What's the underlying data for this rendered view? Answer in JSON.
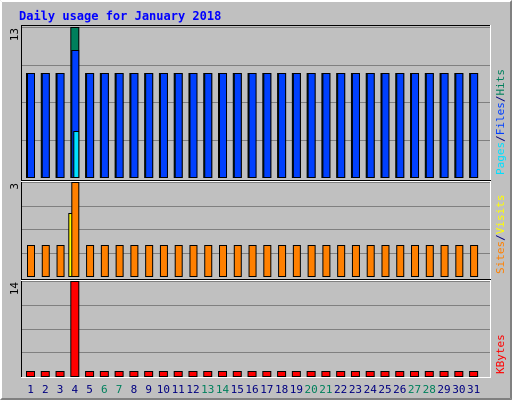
{
  "title": "Daily usage for January 2018",
  "colors": {
    "hits": "#00805c",
    "files": "#0040ff",
    "pages": "#00e0ff",
    "visits": "#ffff00",
    "sites": "#ff8000",
    "kbytes": "#ff0000",
    "weekend_label": "#00805c",
    "weekday_label": "#000080",
    "title": "#0000ff"
  },
  "chart_data": {
    "type": "bar",
    "categories": [
      "1",
      "2",
      "3",
      "4",
      "5",
      "6",
      "7",
      "8",
      "9",
      "10",
      "11",
      "12",
      "13",
      "14",
      "15",
      "16",
      "17",
      "18",
      "19",
      "20",
      "21",
      "22",
      "23",
      "24",
      "25",
      "26",
      "27",
      "28",
      "29",
      "30",
      "31"
    ],
    "weekend_days": [
      "6",
      "7",
      "13",
      "14",
      "20",
      "21",
      "27",
      "28"
    ],
    "panels": [
      {
        "name": "hits-files-pages",
        "scale_label": "13",
        "ylim": [
          0,
          13
        ],
        "legend": [
          {
            "text": "Pages",
            "color": "#00e0ff"
          },
          {
            "text": "/",
            "color": "#000080"
          },
          {
            "text": "Files",
            "color": "#0040ff"
          },
          {
            "text": "/",
            "color": "#000080"
          },
          {
            "text": "Hits",
            "color": "#00805c"
          }
        ],
        "series": [
          {
            "name": "Hits",
            "values": [
              9,
              9,
              9,
              13,
              9,
              9,
              9,
              9,
              9,
              9,
              9,
              9,
              9,
              9,
              9,
              9,
              9,
              9,
              9,
              9,
              9,
              9,
              9,
              9,
              9,
              9,
              9,
              9,
              9,
              9,
              9
            ]
          },
          {
            "name": "Files",
            "values": [
              9,
              9,
              9,
              11,
              9,
              9,
              9,
              9,
              9,
              9,
              9,
              9,
              9,
              9,
              9,
              9,
              9,
              9,
              9,
              9,
              9,
              9,
              9,
              9,
              9,
              9,
              9,
              9,
              9,
              9,
              9
            ]
          },
          {
            "name": "Pages",
            "values": [
              0,
              0,
              0,
              4,
              0,
              0,
              0,
              0,
              0,
              0,
              0,
              0,
              0,
              0,
              0,
              0,
              0,
              0,
              0,
              0,
              0,
              0,
              0,
              0,
              0,
              0,
              0,
              0,
              0,
              0,
              0
            ]
          }
        ]
      },
      {
        "name": "visits-sites",
        "scale_label": "3",
        "ylim": [
          0,
          3
        ],
        "legend": [
          {
            "text": "Sites",
            "color": "#ff8000"
          },
          {
            "text": "/",
            "color": "#000080"
          },
          {
            "text": "Visits",
            "color": "#ffff00"
          }
        ],
        "series": [
          {
            "name": "Visits",
            "values": [
              0,
              0,
              0,
              2,
              0,
              0,
              0,
              0,
              0,
              0,
              0,
              0,
              0,
              0,
              0,
              0,
              0,
              0,
              0,
              0,
              0,
              0,
              0,
              0,
              0,
              0,
              0,
              0,
              0,
              0,
              0
            ]
          },
          {
            "name": "Sites",
            "values": [
              1,
              1,
              1,
              3,
              1,
              1,
              1,
              1,
              1,
              1,
              1,
              1,
              1,
              1,
              1,
              1,
              1,
              1,
              1,
              1,
              1,
              1,
              1,
              1,
              1,
              1,
              1,
              1,
              1,
              1,
              1
            ]
          }
        ]
      },
      {
        "name": "kbytes",
        "scale_label": "14",
        "ylim": [
          0,
          14
        ],
        "legend": [
          {
            "text": "KBytes",
            "color": "#ff0000"
          }
        ],
        "series": [
          {
            "name": "KBytes",
            "values": [
              0.7,
              0.7,
              0.7,
              14,
              0.7,
              0.7,
              0.7,
              0.7,
              0.7,
              0.7,
              0.7,
              0.7,
              0.7,
              0.7,
              0.7,
              0.7,
              0.7,
              0.7,
              0.7,
              0.7,
              0.7,
              0.7,
              0.7,
              0.7,
              0.7,
              0.7,
              0.7,
              0.7,
              0.7,
              0.7,
              0.7
            ]
          }
        ]
      }
    ]
  }
}
